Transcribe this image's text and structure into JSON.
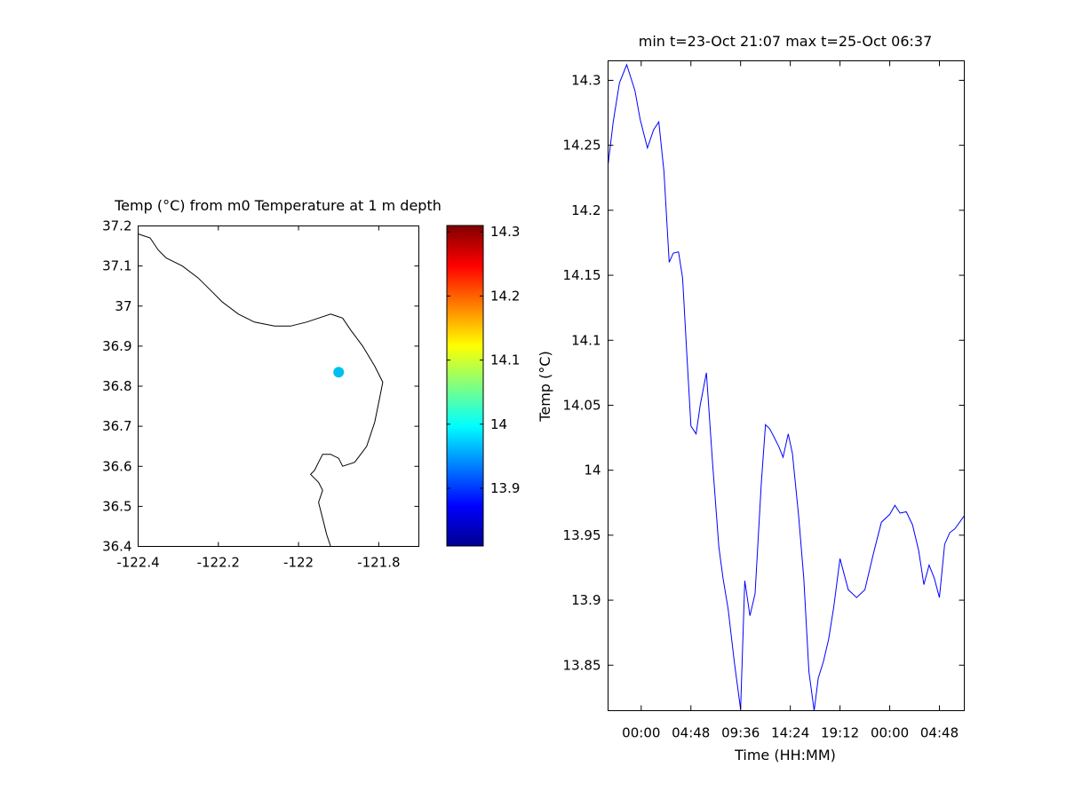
{
  "chart_data": [
    {
      "type": "scatter",
      "title": "Temp (°C) from m0 Temperature at 1 m depth",
      "xlim": [
        -122.4,
        -121.7
      ],
      "ylim": [
        36.4,
        37.2
      ],
      "xticks": [
        -122.4,
        -122.2,
        -122,
        -121.8
      ],
      "xtick_labels": [
        "-122.4",
        "-122.2",
        "-122",
        "-121.8"
      ],
      "yticks": [
        36.4,
        36.5,
        36.6,
        36.7,
        36.8,
        36.9,
        37,
        37.1,
        37.2
      ],
      "ytick_labels": [
        "36.4",
        "36.5",
        "36.6",
        "36.7",
        "36.8",
        "36.9",
        "37",
        "37.1",
        "37.2"
      ],
      "points": [
        {
          "x": -121.9,
          "y": 36.835,
          "value": 13.98,
          "color": "#00C0F0"
        }
      ],
      "coastline": [
        [
          -122.4,
          37.18
        ],
        [
          -122.37,
          37.17
        ],
        [
          -122.35,
          37.14
        ],
        [
          -122.33,
          37.12
        ],
        [
          -122.31,
          37.11
        ],
        [
          -122.29,
          37.1
        ],
        [
          -122.25,
          37.07
        ],
        [
          -122.22,
          37.04
        ],
        [
          -122.19,
          37.01
        ],
        [
          -122.15,
          36.98
        ],
        [
          -122.11,
          36.96
        ],
        [
          -122.06,
          36.95
        ],
        [
          -122.02,
          36.95
        ],
        [
          -121.98,
          36.96
        ],
        [
          -121.95,
          36.97
        ],
        [
          -121.92,
          36.98
        ],
        [
          -121.89,
          36.97
        ],
        [
          -121.87,
          36.94
        ],
        [
          -121.84,
          36.9
        ],
        [
          -121.81,
          36.85
        ],
        [
          -121.79,
          36.81
        ],
        [
          -121.8,
          36.76
        ],
        [
          -121.81,
          36.71
        ],
        [
          -121.83,
          36.65
        ],
        [
          -121.86,
          36.61
        ],
        [
          -121.89,
          36.6
        ],
        [
          -121.9,
          36.62
        ],
        [
          -121.92,
          36.63
        ],
        [
          -121.94,
          36.63
        ],
        [
          -121.95,
          36.61
        ],
        [
          -121.96,
          36.59
        ],
        [
          -121.97,
          36.58
        ],
        [
          -121.95,
          36.56
        ],
        [
          -121.94,
          36.54
        ],
        [
          -121.95,
          36.51
        ],
        [
          -121.94,
          36.47
        ],
        [
          -121.93,
          36.43
        ],
        [
          -121.92,
          36.4
        ]
      ],
      "colorbar": {
        "min": 13.81,
        "max": 14.31,
        "ticks": [
          13.9,
          14,
          14.1,
          14.2,
          14.3
        ],
        "tick_labels": [
          "13.9",
          "14",
          "14.1",
          "14.2",
          "14.3"
        ],
        "colormap": "jet"
      }
    },
    {
      "type": "line",
      "title": "min t=23-Oct 21:07 max t=25-Oct 06:37",
      "xlabel": "Time (HH:MM)",
      "ylabel": "Temp (°C)",
      "xlim": [
        -3.2,
        31.2
      ],
      "ylim": [
        13.815,
        14.315
      ],
      "xticks": [
        0,
        4.8,
        9.6,
        14.4,
        19.2,
        24,
        28.8
      ],
      "xtick_labels": [
        "00:00",
        "04:48",
        "09:36",
        "14:24",
        "19:12",
        "00:00",
        "04:48"
      ],
      "yticks": [
        13.85,
        13.9,
        13.95,
        14,
        14.05,
        14.1,
        14.15,
        14.2,
        14.25,
        14.3
      ],
      "ytick_labels": [
        "13.85",
        "13.9",
        "13.95",
        "14",
        "14.05",
        "14.1",
        "14.15",
        "14.2",
        "14.25",
        "14.3"
      ],
      "series": [
        {
          "color": "#0000FF",
          "x": [
            -3.2,
            -2.7,
            -2.1,
            -1.4,
            -0.6,
            -0.1,
            0.6,
            1.2,
            1.7,
            2.2,
            2.7,
            3.1,
            3.6,
            4.0,
            4.4,
            4.8,
            5.3,
            5.7,
            6.3,
            6.9,
            7.5,
            7.9,
            8.4,
            9.0,
            9.6,
            10.0,
            10.5,
            11.0,
            11.6,
            12.0,
            12.4,
            12.8,
            13.3,
            13.7,
            14.2,
            14.6,
            15.2,
            15.7,
            16.2,
            16.7,
            17.1,
            17.6,
            18.1,
            18.6,
            19.2,
            20.0,
            20.8,
            21.6,
            22.4,
            23.2,
            24.0,
            24.5,
            25.0,
            25.6,
            26.2,
            26.8,
            27.3,
            27.8,
            28.3,
            28.8,
            29.3,
            29.8,
            30.3,
            31.2
          ],
          "y": [
            14.235,
            14.268,
            14.298,
            14.312,
            14.292,
            14.27,
            14.248,
            14.262,
            14.268,
            14.23,
            14.16,
            14.167,
            14.168,
            14.148,
            14.09,
            14.034,
            14.028,
            14.05,
            14.075,
            14.005,
            13.941,
            13.917,
            13.893,
            13.852,
            13.816,
            13.915,
            13.888,
            13.905,
            13.99,
            14.035,
            14.032,
            14.026,
            14.018,
            14.01,
            14.028,
            14.013,
            13.965,
            13.917,
            13.845,
            13.815,
            13.84,
            13.853,
            13.87,
            13.895,
            13.932,
            13.908,
            13.902,
            13.908,
            13.935,
            13.96,
            13.966,
            13.973,
            13.967,
            13.968,
            13.958,
            13.938,
            13.912,
            13.927,
            13.917,
            13.902,
            13.943,
            13.952,
            13.955,
            13.965
          ]
        }
      ]
    }
  ]
}
